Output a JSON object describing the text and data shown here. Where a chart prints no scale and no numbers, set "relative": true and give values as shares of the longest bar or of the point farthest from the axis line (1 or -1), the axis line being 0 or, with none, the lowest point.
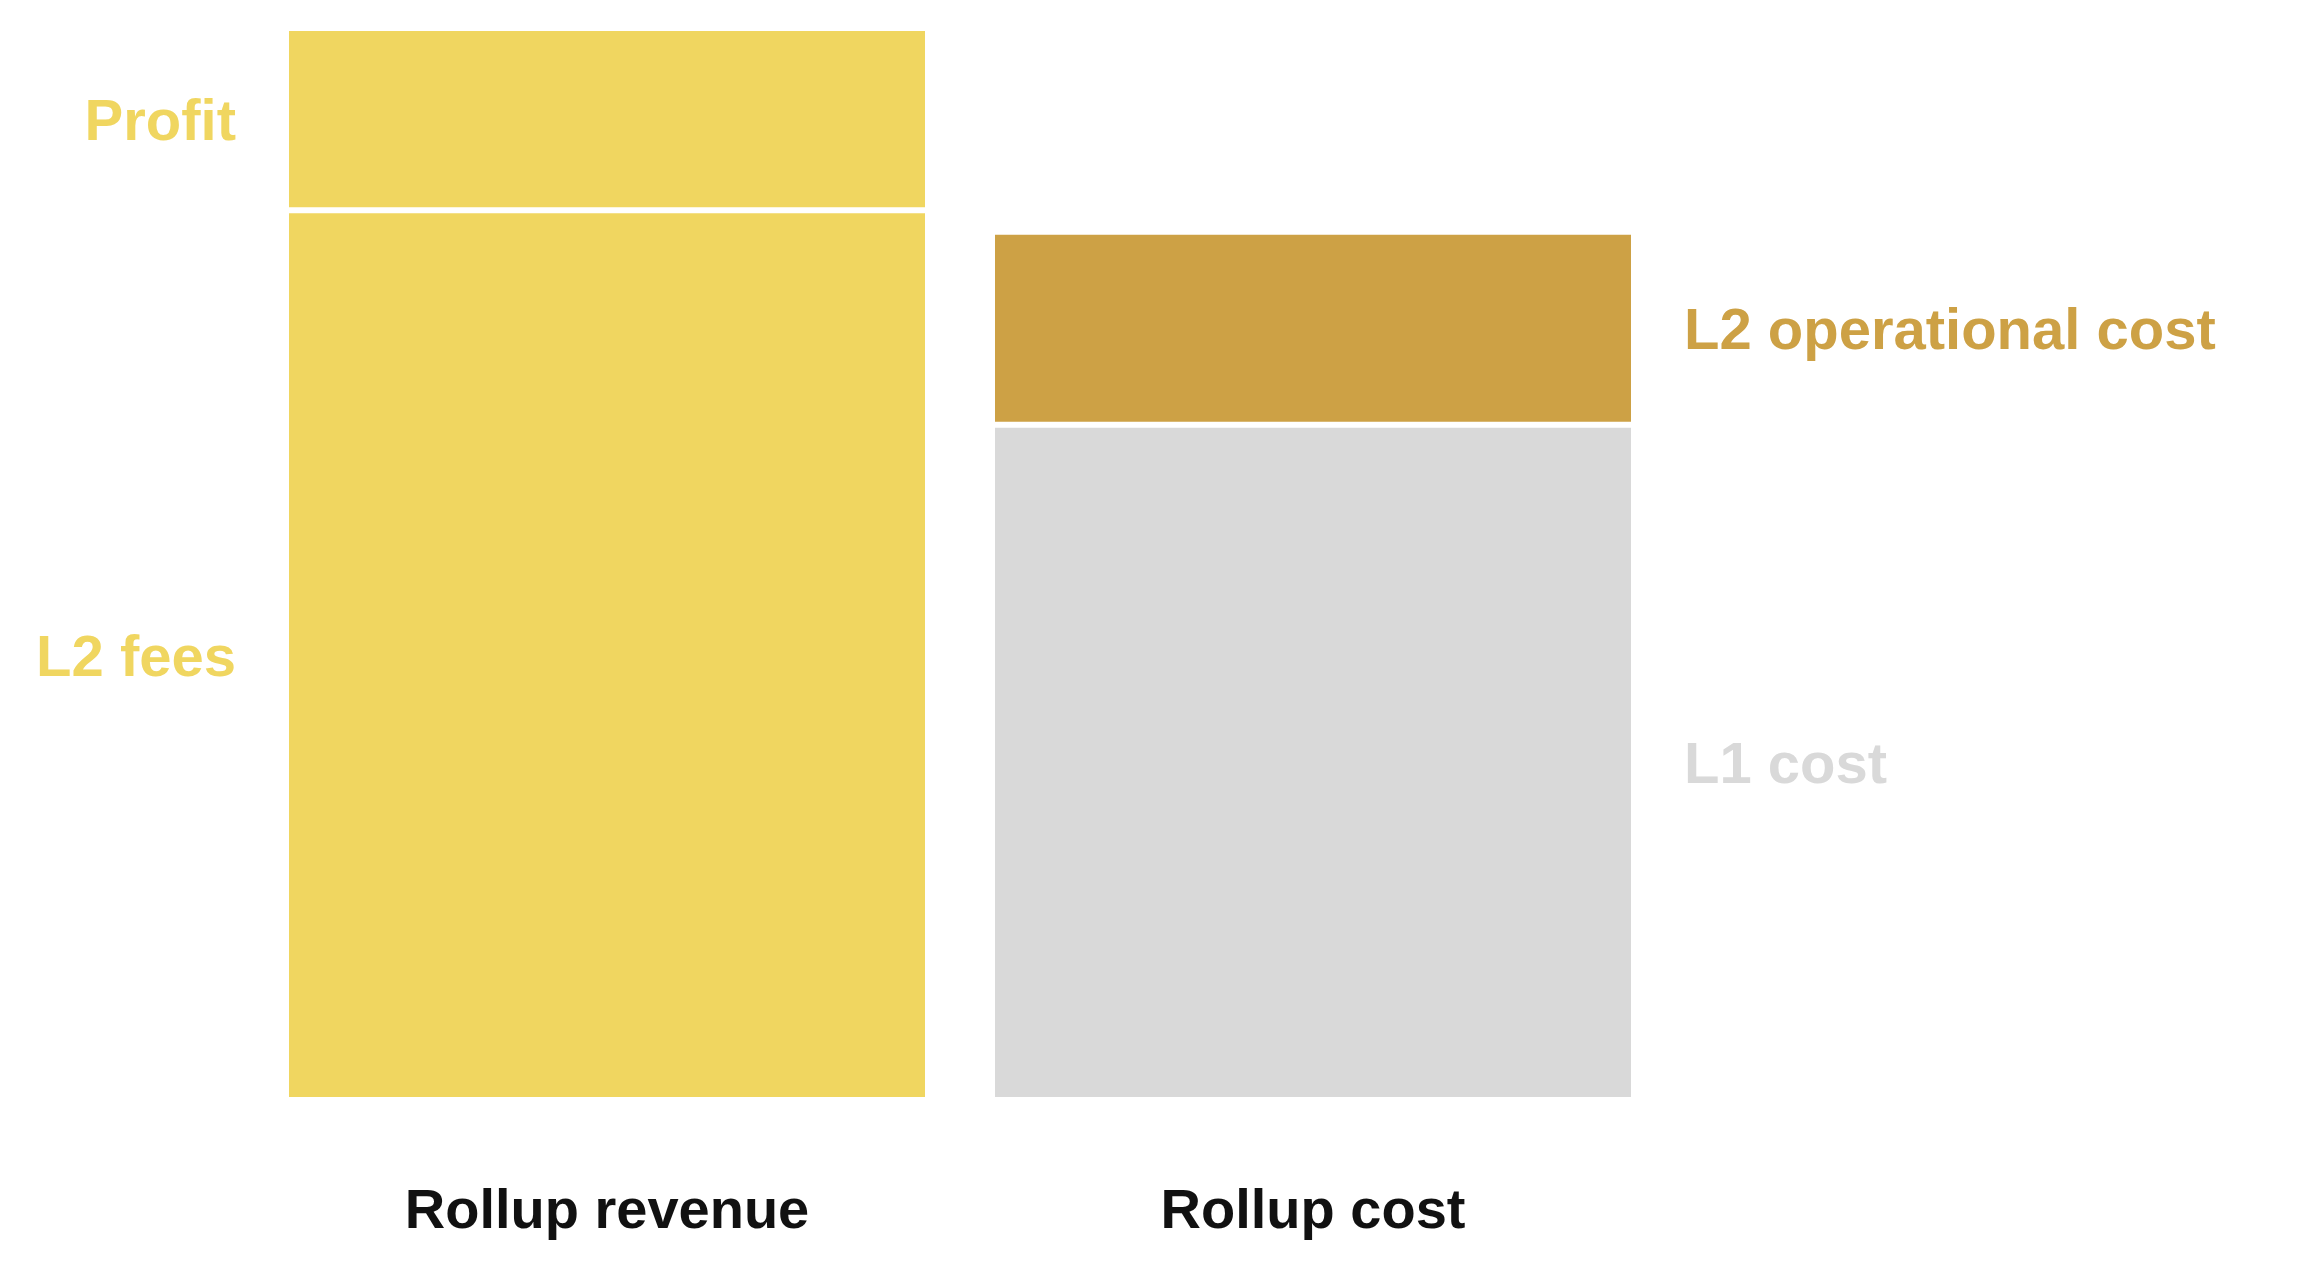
{
  "chart_data": {
    "type": "bar",
    "stacked": true,
    "relative": true,
    "legend": false,
    "categories": [
      "Rollup revenue",
      "Rollup cost"
    ],
    "series": [
      {
        "name": "L2 fees",
        "color": "#f0d660",
        "values": [
          0.83,
          null
        ]
      },
      {
        "name": "Profit",
        "color": "#f0d660",
        "values": [
          0.17,
          null
        ]
      },
      {
        "name": "L1 cost",
        "color": "#d9d9d9",
        "values": [
          null,
          0.63
        ]
      },
      {
        "name": "L2 operational cost",
        "color": "#cda145",
        "values": [
          null,
          0.18
        ]
      }
    ]
  }
}
